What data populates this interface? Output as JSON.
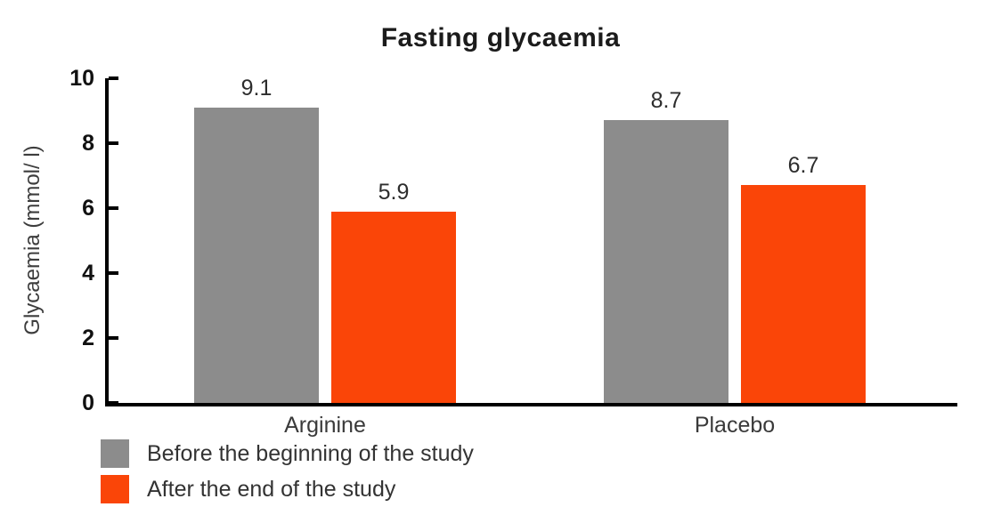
{
  "chart_data": {
    "type": "bar",
    "title": "Fasting glycaemia",
    "ylabel": "Glycaemia (mmol/ l)",
    "xlabel": "",
    "categories": [
      "Arginine",
      "Placebo"
    ],
    "series": [
      {
        "name": "Before the beginning of the study",
        "color": "#8C8C8C",
        "values": [
          9.1,
          8.7
        ]
      },
      {
        "name": "After the end of the study",
        "color": "#FA4508",
        "values": [
          5.9,
          6.7
        ]
      }
    ],
    "ylim": [
      0,
      10
    ],
    "yticks": [
      0,
      2,
      4,
      6,
      8,
      10
    ],
    "grid": false,
    "legend_position": "bottom-left",
    "value_labels_shown": true,
    "axis_color": "#000000",
    "background_color": "#ffffff"
  }
}
